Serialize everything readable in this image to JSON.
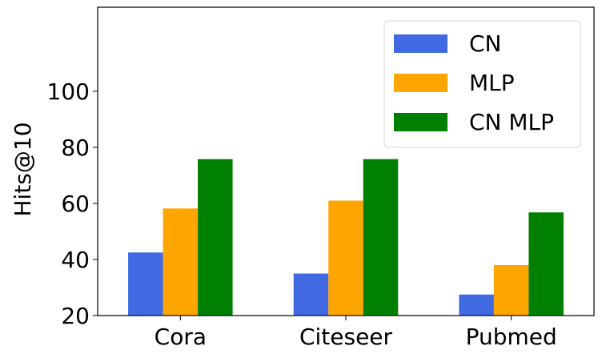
{
  "chart_data": {
    "type": "bar",
    "title": "",
    "xlabel": "",
    "ylabel": "Hits@10",
    "categories": [
      "Cora",
      "Citeseer",
      "Pubmed"
    ],
    "series": [
      {
        "name": "CN",
        "color": "#4169e1",
        "values": [
          42.5,
          35.0,
          27.5
        ]
      },
      {
        "name": "MLP",
        "color": "#ffa500",
        "values": [
          58.2,
          61.0,
          38.0
        ]
      },
      {
        "name": "CN MLP",
        "color": "#008000",
        "values": [
          75.8,
          75.8,
          56.8
        ]
      }
    ],
    "ylim": [
      20,
      130
    ],
    "yticks": [
      20,
      40,
      60,
      80,
      100
    ],
    "grid": false,
    "legend_position": "top-right"
  }
}
